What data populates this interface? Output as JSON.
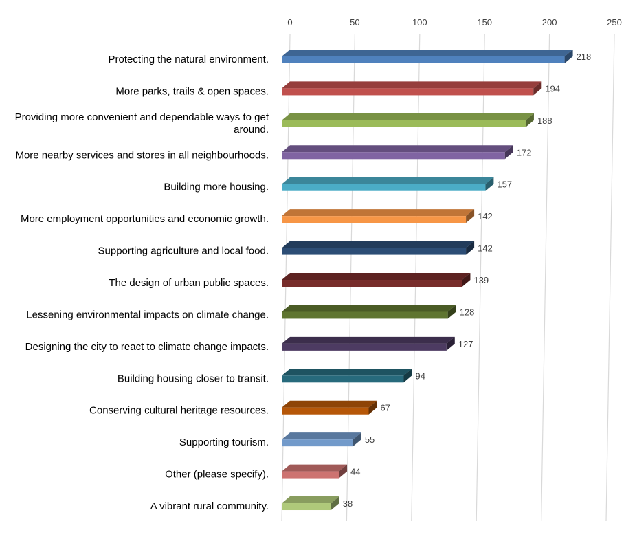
{
  "chart_data": {
    "type": "bar",
    "orientation": "horizontal",
    "style": "3d-clustered",
    "title": "",
    "xlabel": "",
    "ylabel": "",
    "xlim": [
      0,
      250
    ],
    "ticks": [
      0,
      50,
      100,
      150,
      200,
      250
    ],
    "grid": true,
    "legend": "none",
    "axis_position": "top",
    "categories": [
      "Protecting the natural environment.",
      "More parks, trails & open spaces.",
      "Providing more convenient and dependable ways to get around.",
      "More nearby services and stores in all neighbourhoods.",
      "Building more housing.",
      "More employment opportunities and economic growth.",
      "Supporting agriculture and local food.",
      "The design of urban public spaces.",
      "Lessening environmental impacts on climate change.",
      "Designing the city to react to climate change impacts.",
      "Building housing closer to transit.",
      "Conserving cultural heritage resources.",
      "Supporting tourism.",
      "Other (please specify).",
      "A vibrant rural community."
    ],
    "values": [
      218,
      194,
      188,
      172,
      157,
      142,
      142,
      139,
      128,
      127,
      94,
      67,
      55,
      44,
      38
    ],
    "colors": [
      "#4F81BD",
      "#C0504D",
      "#9BBB59",
      "#8064A2",
      "#4BACC6",
      "#F79646",
      "#2C4D75",
      "#772C2A",
      "#5F7530",
      "#4D3B62",
      "#276A7C",
      "#B65708",
      "#729ACA",
      "#CD7371",
      "#AFC97A"
    ]
  }
}
